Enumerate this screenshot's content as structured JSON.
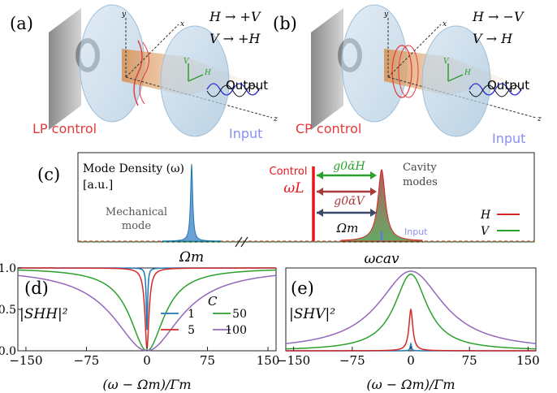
{
  "panel_a": {
    "label": "(a)",
    "eq1": "H → +V",
    "eq2": "V → +H",
    "output": "Output",
    "input": "Input",
    "control": "LP control",
    "axis_x": "x",
    "axis_y": "y",
    "axis_z": "z",
    "pol_h": "H",
    "pol_v": "V"
  },
  "panel_b": {
    "label": "(b)",
    "eq1": "H → −V",
    "eq2": "V → H",
    "output": "Output",
    "input": "Input",
    "control": "CP control",
    "axis_x": "x",
    "axis_y": "y",
    "axis_z": "z",
    "pol_h": "H",
    "pol_v": "V"
  },
  "panel_c": {
    "label": "(c)",
    "mode_density_1": "Mode Density (ω)",
    "mode_density_2": "[a.u.]",
    "mech_1": "Mechanical",
    "mech_2": "mode",
    "control_1": "Control",
    "control_2": "ωL",
    "cavity_1": "Cavity",
    "cavity_2": "modes",
    "g_h": "g0ᾱH",
    "g_v": "g0ᾱV",
    "omega_m": "Ωm",
    "input": "Input",
    "legend_h": "H",
    "legend_v": "V",
    "xtick_left": "Ωm",
    "xtick_right": "ωcav",
    "colors": {
      "H": "#d62728",
      "V": "#2ca02c",
      "mech": "#1f77b4",
      "control": "#e8151b",
      "input": "#8a8ff0"
    }
  },
  "chart_data": [
    {
      "type": "line",
      "panel": "(d)",
      "ylabel": "|SHH|²",
      "xlabel": "(ω − Ωm)/Γm",
      "xlim": [
        -160,
        160
      ],
      "ylim": [
        0,
        1
      ],
      "xticks": [
        "−150",
        "−75",
        "0",
        "75",
        "150"
      ],
      "yticks": [
        "0.0",
        "0.5",
        "1.0"
      ],
      "legend_title": "C",
      "series": [
        {
          "name": "1",
          "color": "#1f77b4",
          "C": 1
        },
        {
          "name": "5",
          "color": "#d62728",
          "C": 5
        },
        {
          "name": "50",
          "color": "#2ca02c",
          "C": 50
        },
        {
          "name": "100",
          "color": "#9467bd",
          "C": 100
        }
      ]
    },
    {
      "type": "line",
      "panel": "(e)",
      "ylabel": "|SHV|²",
      "xlabel": "(ω − Ωm)/Γm",
      "xlim": [
        -160,
        160
      ],
      "ylim": [
        0,
        1
      ],
      "xticks": [
        "−150",
        "−75",
        "0",
        "75",
        "150"
      ],
      "series": [
        {
          "name": "1",
          "color": "#1f77b4",
          "C": 1
        },
        {
          "name": "5",
          "color": "#d62728",
          "C": 5
        },
        {
          "name": "50",
          "color": "#2ca02c",
          "C": 50
        },
        {
          "name": "100",
          "color": "#9467bd",
          "C": 100
        }
      ]
    }
  ]
}
